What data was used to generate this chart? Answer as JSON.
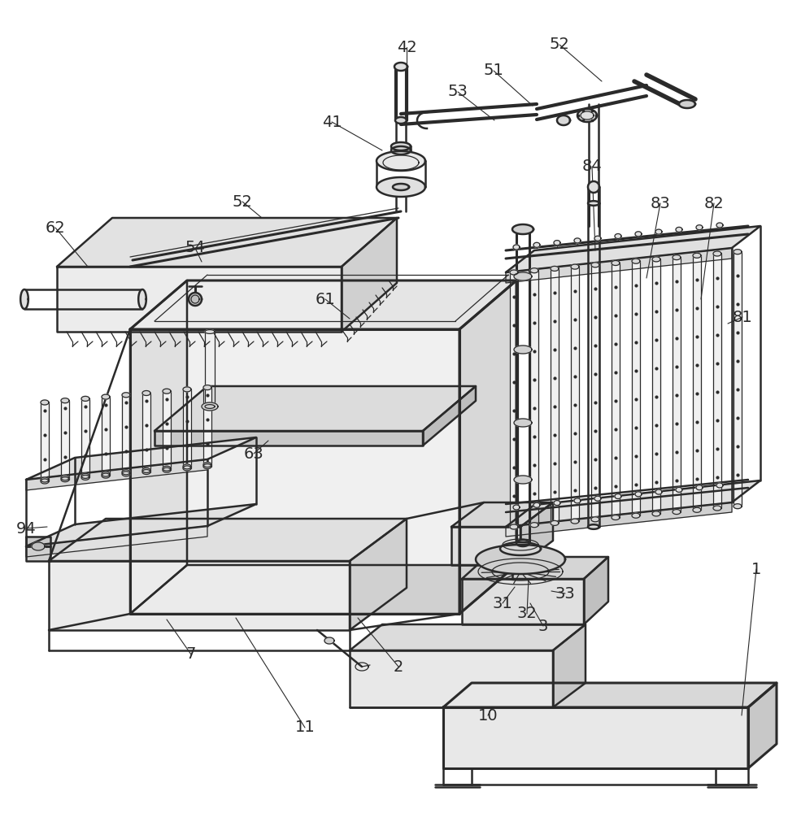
{
  "bg_color": "#ffffff",
  "line_color": "#2a2a2a",
  "label_color": "#2a2a2a",
  "lw_main": 1.8,
  "lw_thin": 0.9,
  "lw_thick": 2.2,
  "lw_pipe": 3.0,
  "label_fontsize": 14,
  "labels": [
    [
      "1",
      930,
      700
    ],
    [
      "2",
      490,
      820
    ],
    [
      "3",
      668,
      770
    ],
    [
      "7",
      235,
      805
    ],
    [
      "10",
      600,
      880
    ],
    [
      "11",
      375,
      895
    ],
    [
      "31",
      618,
      742
    ],
    [
      "32",
      648,
      755
    ],
    [
      "33",
      695,
      730
    ],
    [
      "41",
      408,
      150
    ],
    [
      "42",
      500,
      58
    ],
    [
      "51",
      607,
      87
    ],
    [
      "52",
      688,
      55
    ],
    [
      "52",
      298,
      248
    ],
    [
      "53",
      563,
      113
    ],
    [
      "54",
      240,
      305
    ],
    [
      "61",
      400,
      368
    ],
    [
      "62",
      68,
      280
    ],
    [
      "63",
      312,
      558
    ],
    [
      "81",
      913,
      390
    ],
    [
      "82",
      878,
      250
    ],
    [
      "83",
      812,
      250
    ],
    [
      "84",
      728,
      205
    ],
    [
      "94",
      32,
      650
    ]
  ],
  "leader_lines": [
    [
      930,
      700,
      912,
      880
    ],
    [
      490,
      820,
      440,
      760
    ],
    [
      668,
      770,
      652,
      742
    ],
    [
      235,
      805,
      205,
      762
    ],
    [
      600,
      880,
      605,
      870
    ],
    [
      375,
      895,
      290,
      760
    ],
    [
      618,
      742,
      633,
      722
    ],
    [
      648,
      755,
      650,
      712
    ],
    [
      695,
      730,
      678,
      727
    ],
    [
      408,
      150,
      470,
      185
    ],
    [
      500,
      58,
      500,
      148
    ],
    [
      607,
      87,
      655,
      130
    ],
    [
      688,
      55,
      740,
      100
    ],
    [
      298,
      248,
      322,
      268
    ],
    [
      563,
      113,
      608,
      148
    ],
    [
      240,
      305,
      248,
      322
    ],
    [
      400,
      368,
      430,
      392
    ],
    [
      68,
      280,
      108,
      328
    ],
    [
      312,
      558,
      330,
      542
    ],
    [
      913,
      390,
      895,
      398
    ],
    [
      878,
      250,
      862,
      368
    ],
    [
      812,
      250,
      795,
      342
    ],
    [
      728,
      205,
      732,
      308
    ],
    [
      32,
      650,
      58,
      648
    ]
  ]
}
